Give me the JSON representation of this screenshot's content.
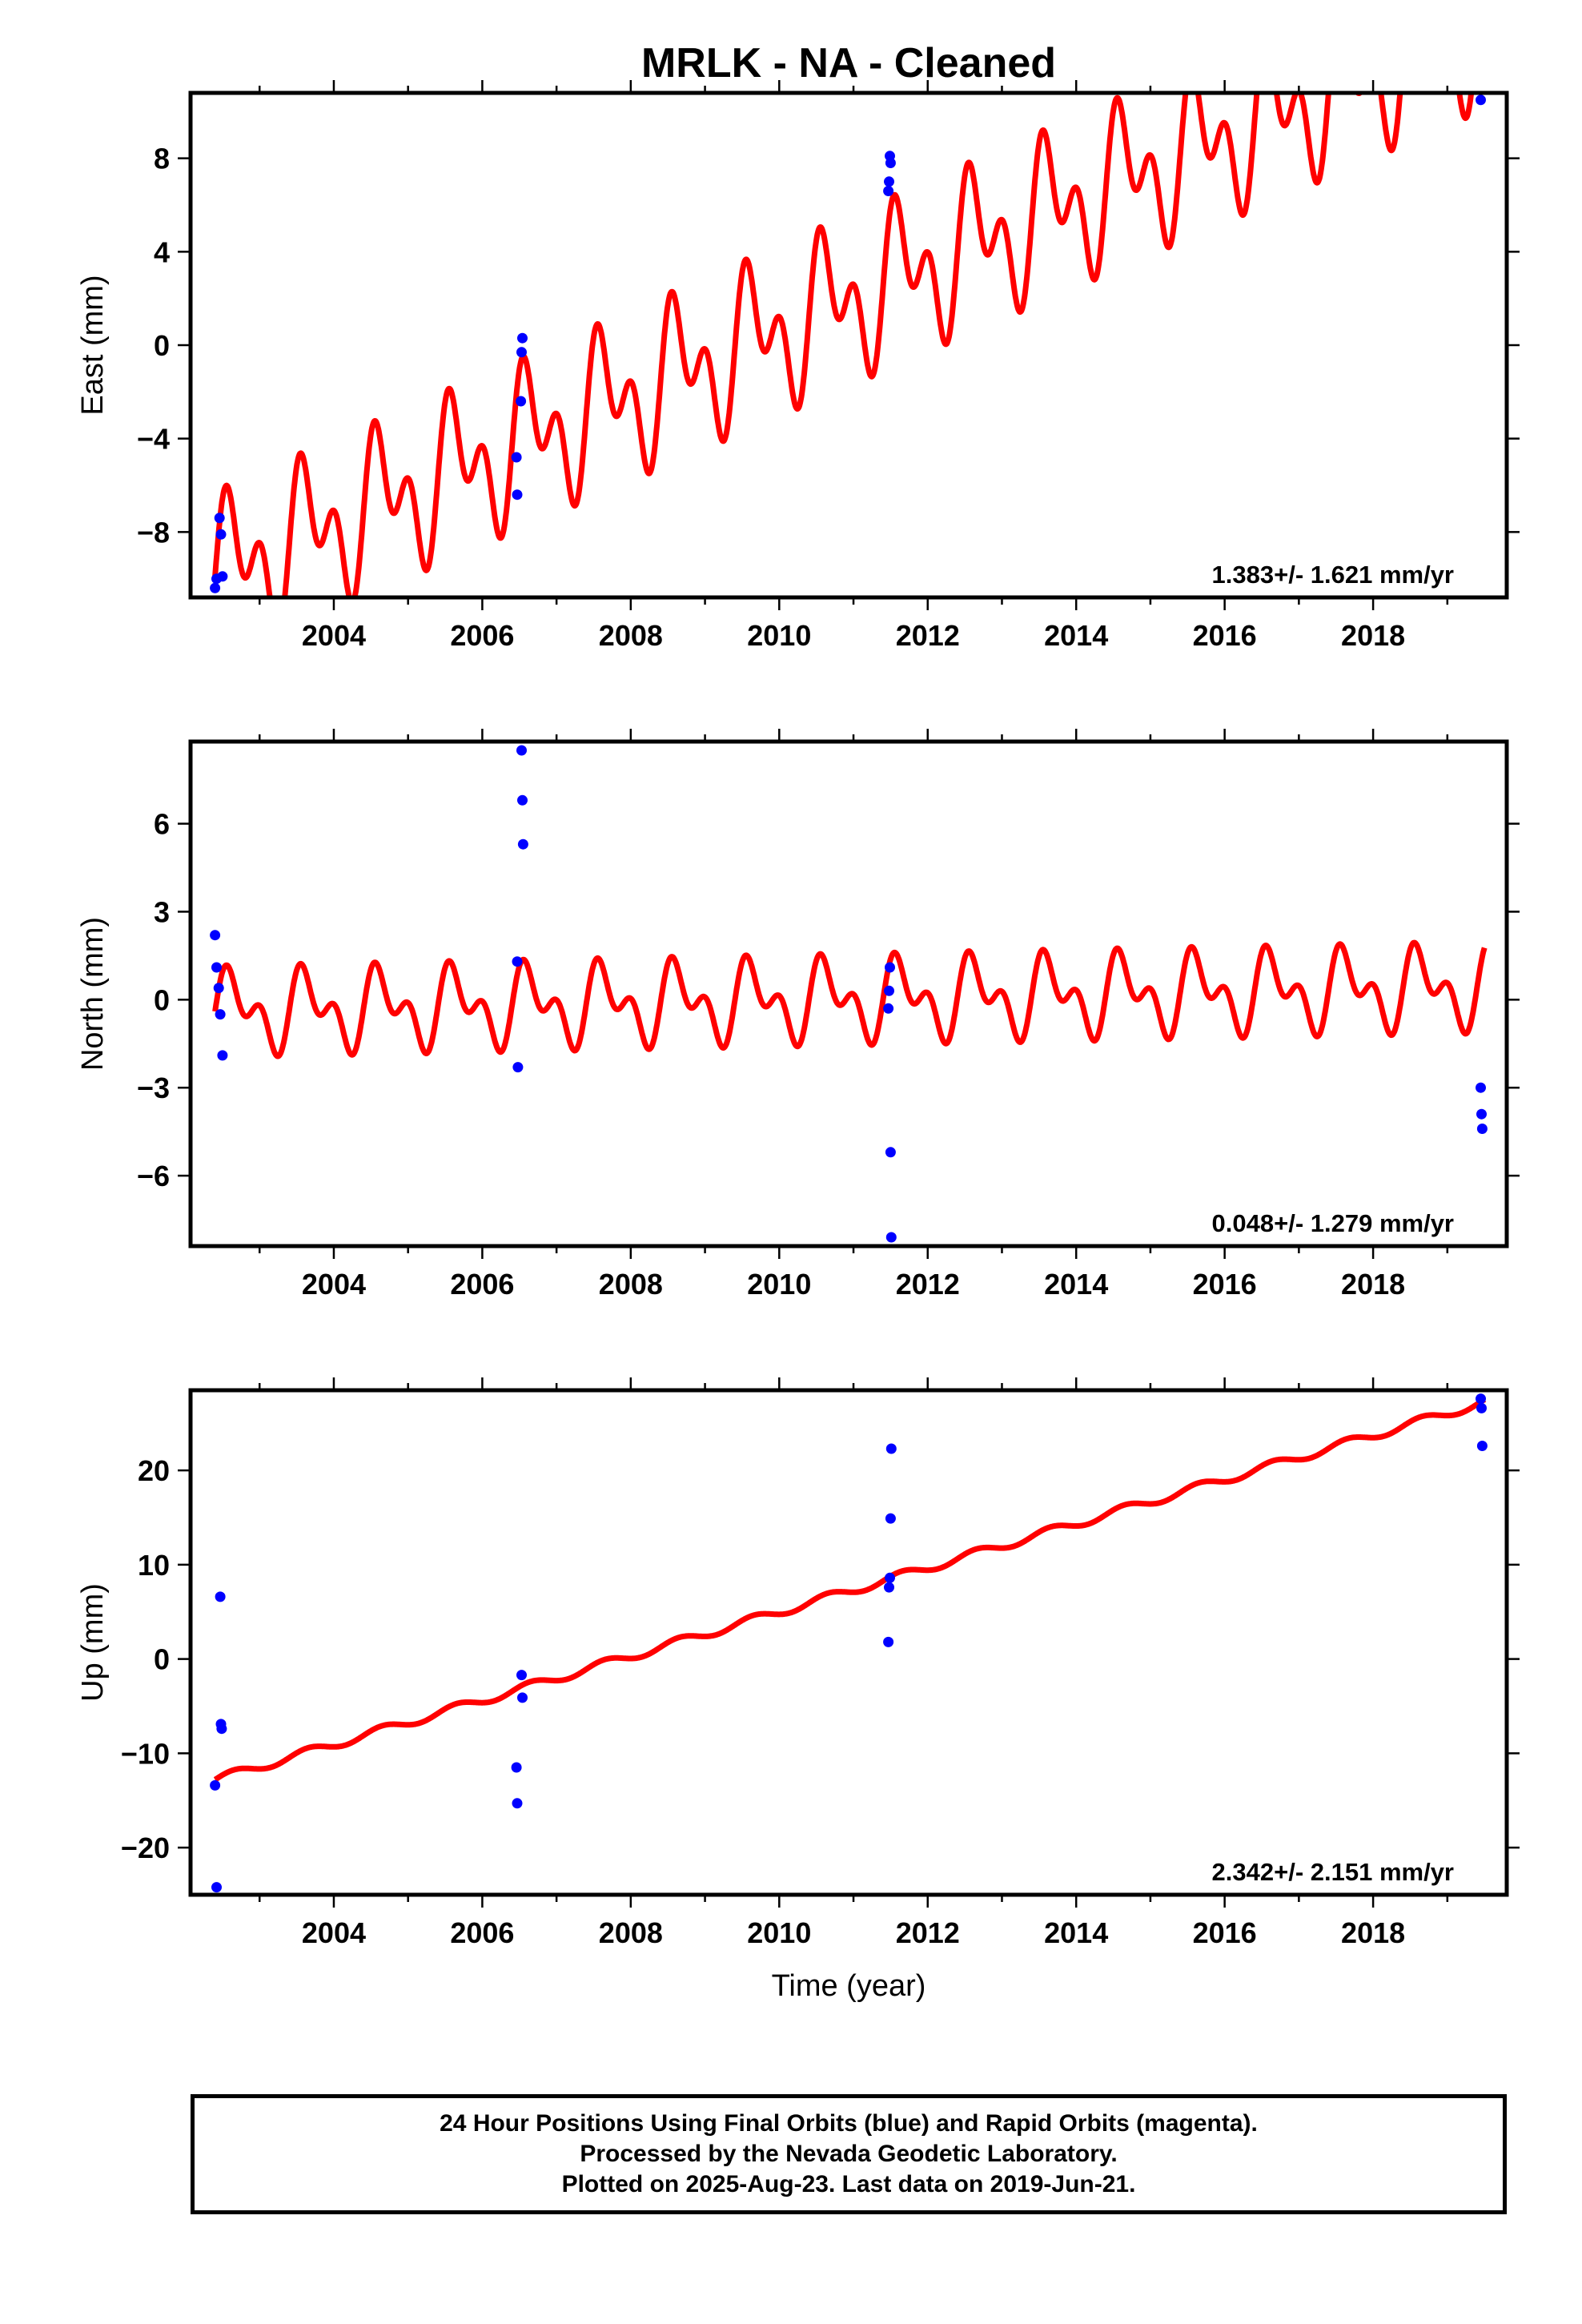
{
  "title": "MRLK  - NA - Cleaned",
  "colors": {
    "model": "#ff0000",
    "final_orbits": "#0000ff",
    "axes": "#000000"
  },
  "footer": {
    "line1": "24 Hour Positions Using Final Orbits (blue) and Rapid Orbits (magenta).",
    "line2": "Processed by the Nevada Geodetic Laboratory.",
    "line3": "Plotted on 2025-Aug-23. Last data on 2019-Jun-21."
  },
  "chart_data": [
    {
      "type": "scatter",
      "ylabel": "East (mm)",
      "xlim": [
        2002.07,
        2019.8
      ],
      "ylim": [
        -10.8,
        10.8
      ],
      "xticks": [
        2004,
        2006,
        2008,
        2010,
        2012,
        2014,
        2016,
        2018
      ],
      "xtick_labels": [
        "2004",
        "2006",
        "2008",
        "2010",
        "2012",
        "2014",
        "2016",
        "2018"
      ],
      "yticks": [
        -8,
        -4,
        0,
        4,
        8
      ],
      "ytick_labels": [
        "−8",
        "−4",
        "0",
        "4",
        "8"
      ],
      "rate_label": "1.383+/- 1.621 mm/yr",
      "model": {
        "intercept": -9.9,
        "start_year": 2002.4,
        "slope": 1.383,
        "a1": 2.2,
        "p1": 0.0,
        "a2": 2.0,
        "p2": 0.0,
        "end_year": 2019.5
      },
      "points": [
        [
          2002.4,
          -10.4
        ],
        [
          2002.42,
          -10.0
        ],
        [
          2002.46,
          -7.4
        ],
        [
          2002.48,
          -8.1
        ],
        [
          2002.5,
          -9.9
        ],
        [
          2006.46,
          -4.8
        ],
        [
          2006.47,
          -6.4
        ],
        [
          2006.52,
          -2.4
        ],
        [
          2006.53,
          -0.3
        ],
        [
          2006.54,
          0.3
        ],
        [
          2011.47,
          6.6
        ],
        [
          2011.48,
          7.0
        ],
        [
          2011.49,
          8.1
        ],
        [
          2011.5,
          7.8
        ],
        [
          2019.45,
          10.5
        ]
      ]
    },
    {
      "type": "scatter",
      "ylabel": "North (mm)",
      "xlim": [
        2002.07,
        2019.8
      ],
      "ylim": [
        -8.4,
        8.8
      ],
      "xticks": [
        2004,
        2006,
        2008,
        2010,
        2012,
        2014,
        2016,
        2018
      ],
      "xtick_labels": [
        "2004",
        "2006",
        "2008",
        "2010",
        "2012",
        "2014",
        "2016",
        "2018"
      ],
      "yticks": [
        -6,
        -3,
        0,
        3,
        6
      ],
      "ytick_labels": [
        "−6",
        "−3",
        "0",
        "3",
        "6"
      ],
      "rate_label": "0.048+/- 1.279 mm/yr",
      "model": {
        "intercept": -0.4,
        "start_year": 2002.4,
        "slope": 0.048,
        "a1": 1.0,
        "p1": 0.0,
        "a2": 0.8,
        "p2": 0.0,
        "end_year": 2019.5
      },
      "points": [
        [
          2002.4,
          2.2
        ],
        [
          2002.42,
          1.1
        ],
        [
          2002.45,
          0.4
        ],
        [
          2002.47,
          -0.5
        ],
        [
          2002.5,
          -1.9
        ],
        [
          2006.47,
          1.3
        ],
        [
          2006.48,
          -2.3
        ],
        [
          2006.53,
          8.5
        ],
        [
          2006.54,
          6.8
        ],
        [
          2006.55,
          5.3
        ],
        [
          2011.47,
          -0.3
        ],
        [
          2011.48,
          0.3
        ],
        [
          2011.49,
          1.1
        ],
        [
          2011.5,
          -5.2
        ],
        [
          2011.51,
          -8.1
        ],
        [
          2019.45,
          -3.0
        ],
        [
          2019.46,
          -3.9
        ],
        [
          2019.47,
          -4.4
        ]
      ]
    },
    {
      "type": "scatter",
      "ylabel": "Up (mm)",
      "xlabel": "Time (year)",
      "xlim": [
        2002.07,
        2019.8
      ],
      "ylim": [
        -25,
        28.5
      ],
      "xticks": [
        2004,
        2006,
        2008,
        2010,
        2012,
        2014,
        2016,
        2018
      ],
      "xtick_labels": [
        "2004",
        "2006",
        "2008",
        "2010",
        "2012",
        "2014",
        "2016",
        "2018"
      ],
      "yticks": [
        -20,
        -10,
        0,
        10,
        20
      ],
      "ytick_labels": [
        "−20",
        "−10",
        "0",
        "10",
        "20"
      ],
      "rate_label": "2.342+/- 2.151 mm/yr",
      "model": {
        "intercept": -12.8,
        "start_year": 2002.4,
        "slope": 2.342,
        "a1": 0.45,
        "p1": 0.0,
        "a2": 0.0,
        "p2": 0.0,
        "end_year": 2019.5
      },
      "points": [
        [
          2002.4,
          -13.4
        ],
        [
          2002.42,
          -24.2
        ],
        [
          2002.47,
          6.6
        ],
        [
          2002.48,
          -6.9
        ],
        [
          2002.49,
          -7.4
        ],
        [
          2006.46,
          -11.5
        ],
        [
          2006.47,
          -15.3
        ],
        [
          2006.53,
          -1.7
        ],
        [
          2006.54,
          -4.1
        ],
        [
          2011.47,
          1.8
        ],
        [
          2011.48,
          7.6
        ],
        [
          2011.49,
          8.6
        ],
        [
          2011.5,
          14.9
        ],
        [
          2011.51,
          22.3
        ],
        [
          2019.45,
          27.6
        ],
        [
          2019.46,
          26.6
        ],
        [
          2019.47,
          22.6
        ]
      ]
    }
  ]
}
